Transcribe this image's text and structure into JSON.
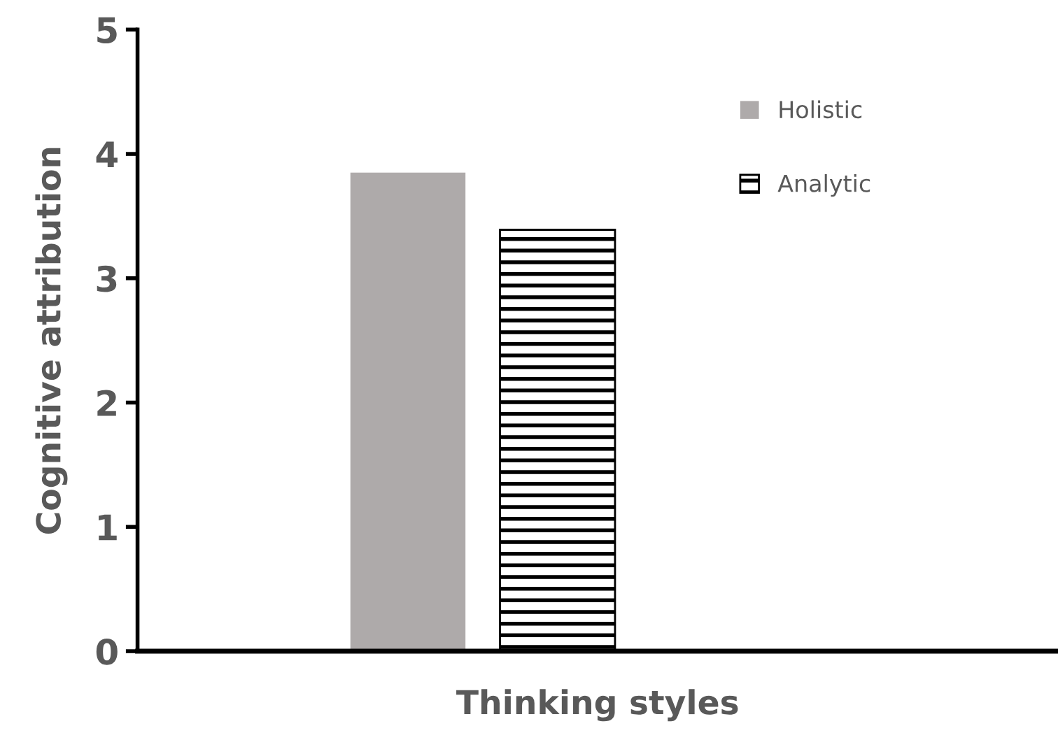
{
  "chart_data": {
    "type": "bar",
    "xlabel": "Thinking styles",
    "ylabel": "Cognitive attribution",
    "categories": [
      null
    ],
    "series": [
      {
        "name": "Holistic",
        "color": "#aeaaaa",
        "values": [
          3.85
        ]
      },
      {
        "name": "Analytic",
        "color": "#000000",
        "values": [
          3.39
        ]
      }
    ],
    "ylim": [
      0,
      5
    ],
    "yticks": [
      0,
      1,
      2,
      3,
      4,
      5
    ],
    "grid": false,
    "legend": "top right"
  }
}
